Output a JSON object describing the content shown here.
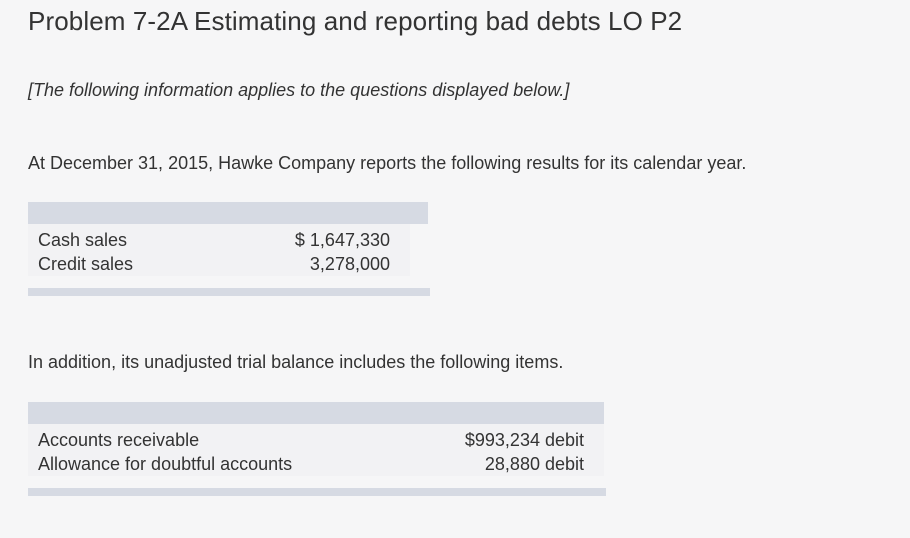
{
  "title": "Problem 7-2A Estimating and reporting bad debts LO P2",
  "note": "[The following information applies to the questions displayed below.]",
  "para1": "At December 31, 2015, Hawke Company reports the following results for its calendar year.",
  "table1": {
    "rows": [
      {
        "label": "Cash sales",
        "amount": "$ 1,647,330"
      },
      {
        "label": "Credit sales",
        "amount": "3,278,000"
      }
    ]
  },
  "para2": "In addition, its unadjusted trial balance includes the following items.",
  "table2": {
    "rows": [
      {
        "label": "Accounts receivable",
        "amount": "$993,234 debit"
      },
      {
        "label": "Allowance for doubtful accounts",
        "amount": "28,880 debit"
      }
    ]
  }
}
